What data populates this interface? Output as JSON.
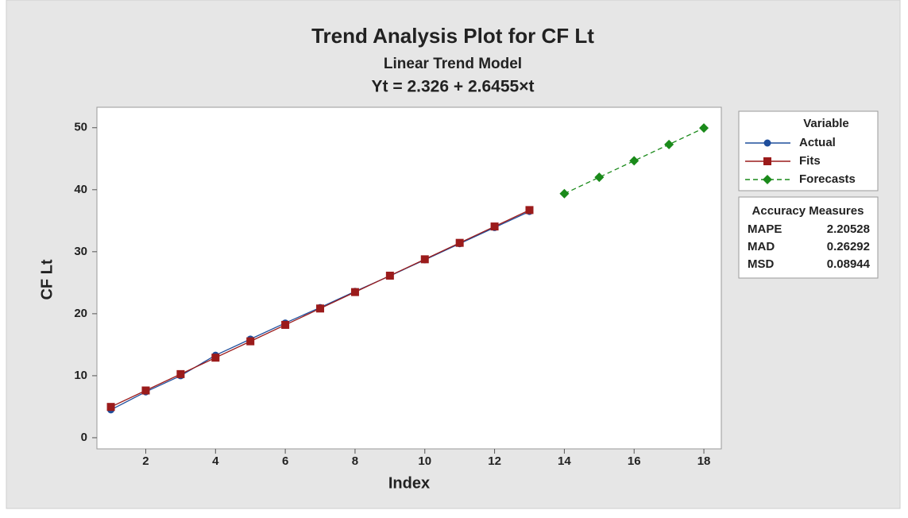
{
  "chart_data": {
    "type": "line",
    "title": "Trend Analysis Plot for CF Lt",
    "subtitle": "Linear Trend Model",
    "equation": "Yt = 2.326 + 2.6455×t",
    "x_label": "Index",
    "y_label": "CF Lt",
    "xlim": [
      0.6,
      18.5
    ],
    "xticks": [
      2,
      4,
      6,
      8,
      10,
      12,
      14,
      16,
      18
    ],
    "ylim": [
      -1.8,
      53.3
    ],
    "yticks": [
      0,
      10,
      20,
      30,
      40,
      50
    ],
    "grid": false,
    "legend_title": "Variable",
    "series": [
      {
        "name": "Actual",
        "color": "#1f4e9c",
        "marker": "circle",
        "dashed": false,
        "x": [
          1,
          2,
          3,
          4,
          5,
          6,
          7,
          8,
          9,
          10,
          11,
          12,
          13
        ],
        "values": [
          4.5,
          7.4,
          10.0,
          13.3,
          15.9,
          18.5,
          21.0,
          23.6,
          26.1,
          28.7,
          31.3,
          33.9,
          36.5
        ]
      },
      {
        "name": "Fits",
        "color": "#9b1b1b",
        "marker": "square",
        "dashed": false,
        "x": [
          1,
          2,
          3,
          4,
          5,
          6,
          7,
          8,
          9,
          10,
          11,
          12,
          13
        ],
        "values": [
          4.97,
          7.62,
          10.26,
          12.91,
          15.55,
          18.2,
          20.84,
          23.49,
          26.14,
          28.78,
          31.43,
          34.07,
          36.72
        ]
      },
      {
        "name": "Forecasts",
        "color": "#1a8a1a",
        "marker": "diamond",
        "dashed": true,
        "x": [
          14,
          15,
          16,
          17,
          18
        ],
        "values": [
          39.36,
          42.01,
          44.66,
          47.3,
          49.95
        ]
      }
    ],
    "accuracy_measures": {
      "title": "Accuracy Measures",
      "rows": [
        [
          "MAPE",
          2.20528
        ],
        [
          "MAD",
          0.26292
        ],
        [
          "MSD",
          0.08944
        ]
      ]
    }
  }
}
